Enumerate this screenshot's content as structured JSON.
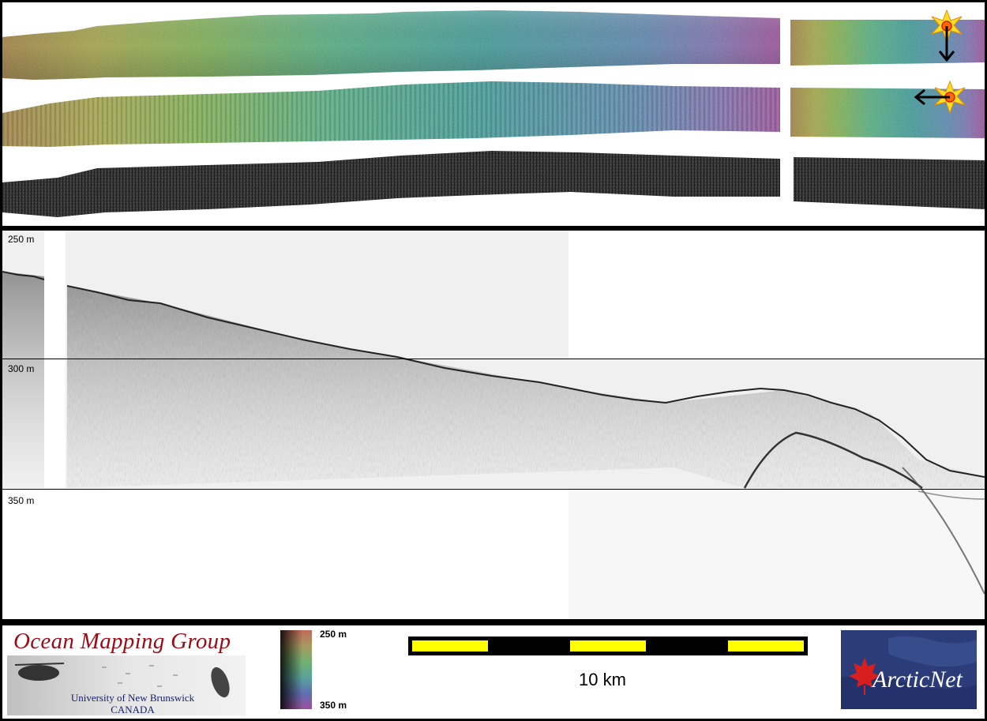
{
  "profile": {
    "depth_labels": [
      "250 m",
      "300 m",
      "350 m"
    ]
  },
  "footer": {
    "ocean_mapping_title": "Ocean Mapping Group",
    "university_line1": "University of New Brunswick",
    "university_line2": "CANADA",
    "colorbar_top": "250 m",
    "colorbar_bottom": "350 m",
    "scale_label": "10 km",
    "arcticnet_logo_text": "ArcticNet"
  },
  "colors": {
    "frame": "#000000",
    "scale_segment": "#ffff00",
    "ocean_title": "#9b0b16",
    "unb_text": "#14206e"
  },
  "icons": [
    "sun-illumination-icon",
    "arrow-down-icon",
    "arrow-left-icon",
    "maple-leaf-icon"
  ]
}
